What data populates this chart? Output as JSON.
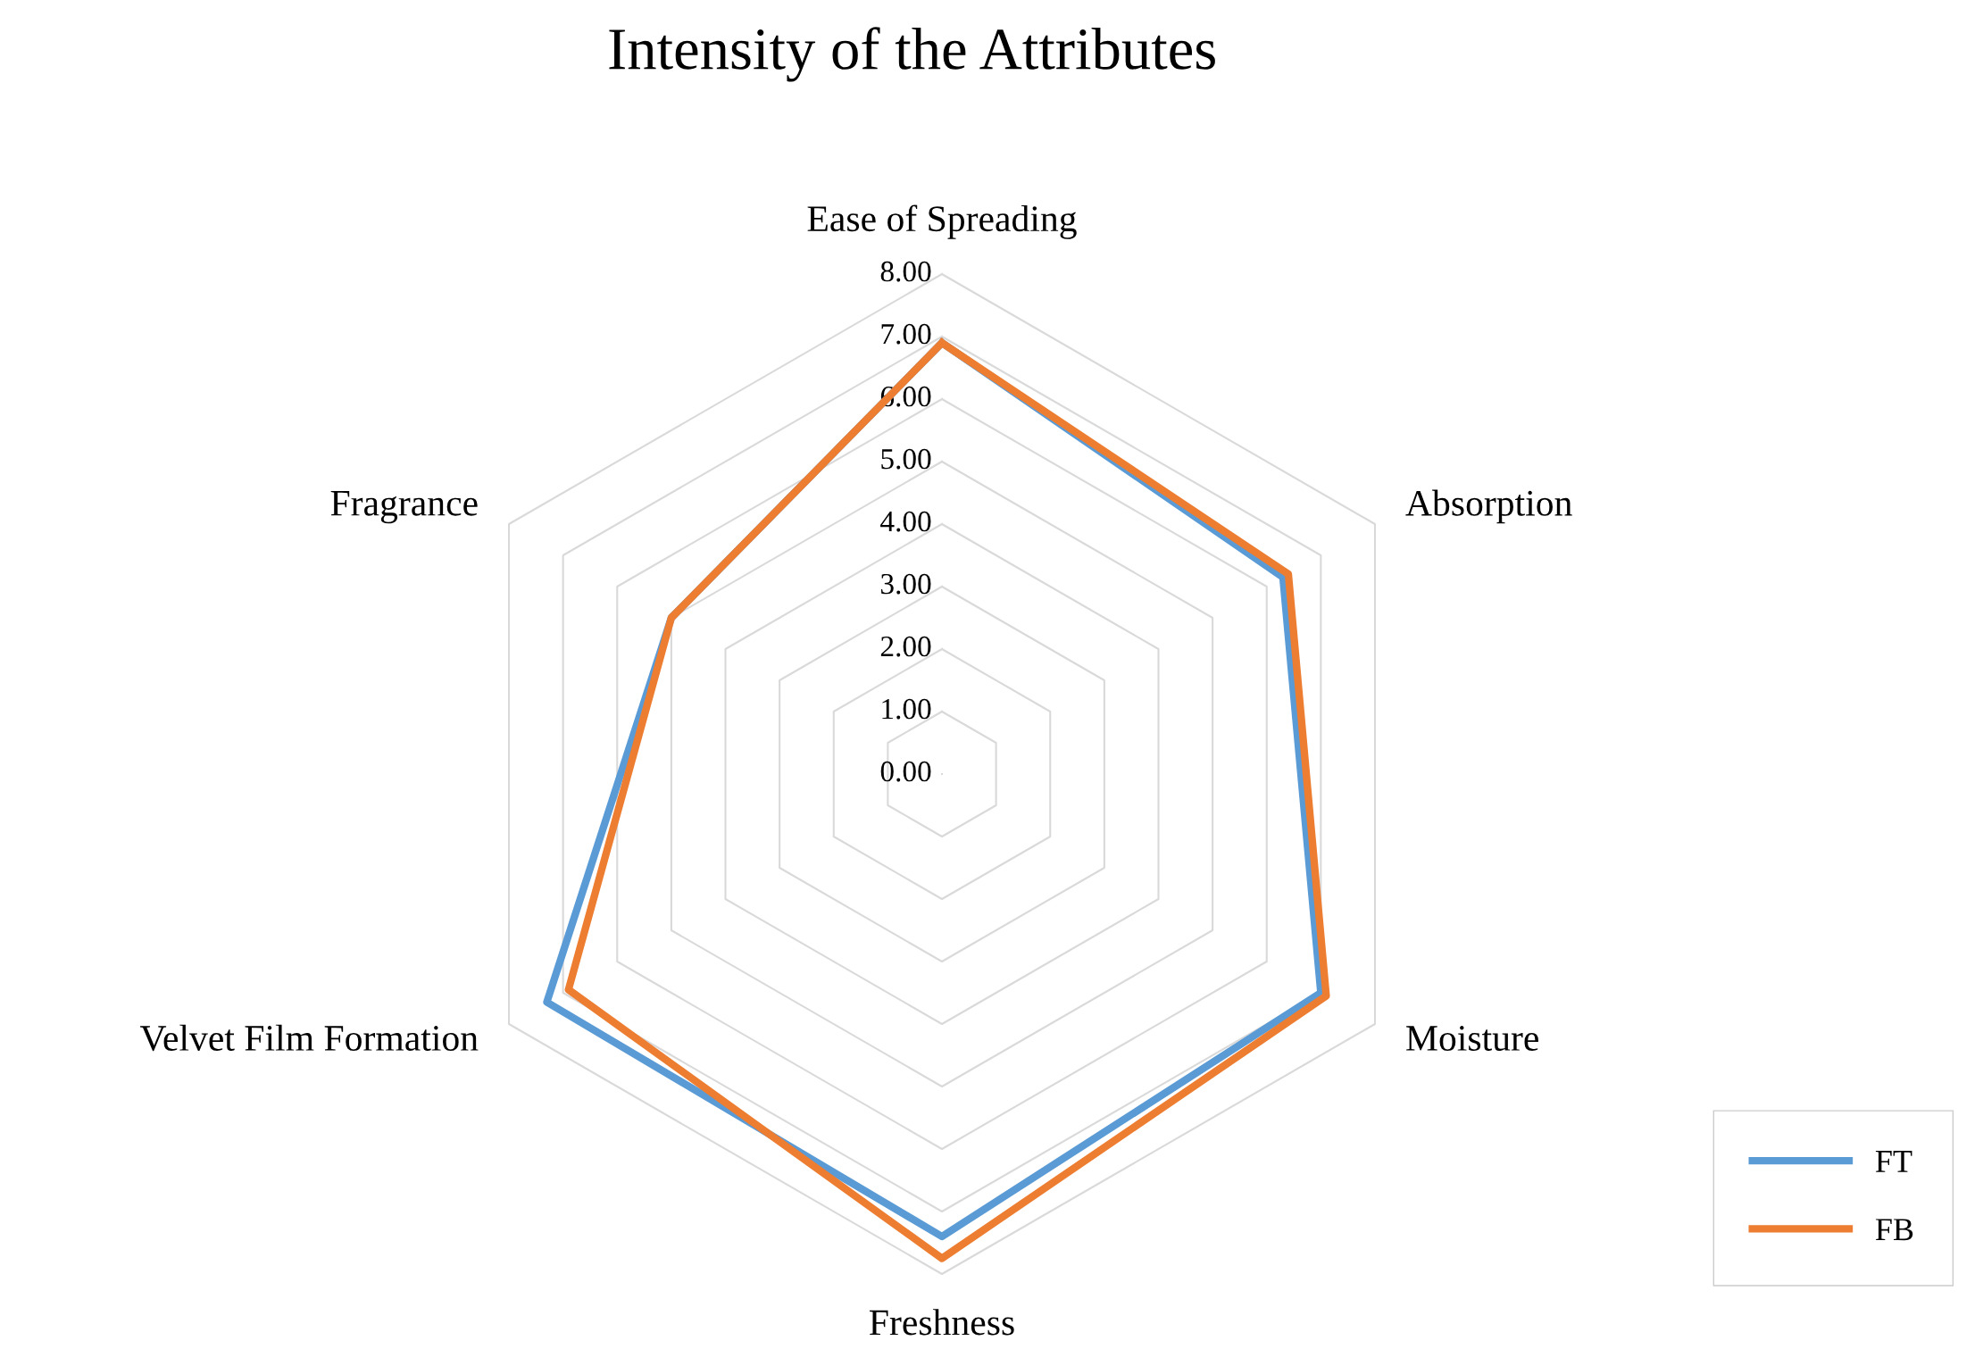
{
  "chart_data": {
    "type": "radar",
    "title": "Intensity of the Attributes",
    "categories": [
      "Ease of Spreading",
      "Absorption",
      "Moisture",
      "Freshness",
      "Velvet Film Formation",
      "Fragrance"
    ],
    "series": [
      {
        "name": "FT",
        "color": "#5b9bd5",
        "values": [
          6.9,
          6.3,
          7.0,
          7.4,
          7.3,
          5.0
        ]
      },
      {
        "name": "FB",
        "color": "#ed7d31",
        "values": [
          6.9,
          6.4,
          7.1,
          7.75,
          6.9,
          5.0
        ]
      }
    ],
    "ylim": [
      0,
      8
    ],
    "yticks": [
      {
        "value": 0,
        "label": "0.00"
      },
      {
        "value": 1,
        "label": "1.00"
      },
      {
        "value": 2,
        "label": "2.00"
      },
      {
        "value": 3,
        "label": "3.00"
      },
      {
        "value": 4,
        "label": "4.00"
      },
      {
        "value": 5,
        "label": "5.00"
      },
      {
        "value": 6,
        "label": "6.00"
      },
      {
        "value": 7,
        "label": "7.00"
      },
      {
        "value": 8,
        "label": "8.00"
      }
    ],
    "grid": true,
    "legend": "bottom right"
  }
}
